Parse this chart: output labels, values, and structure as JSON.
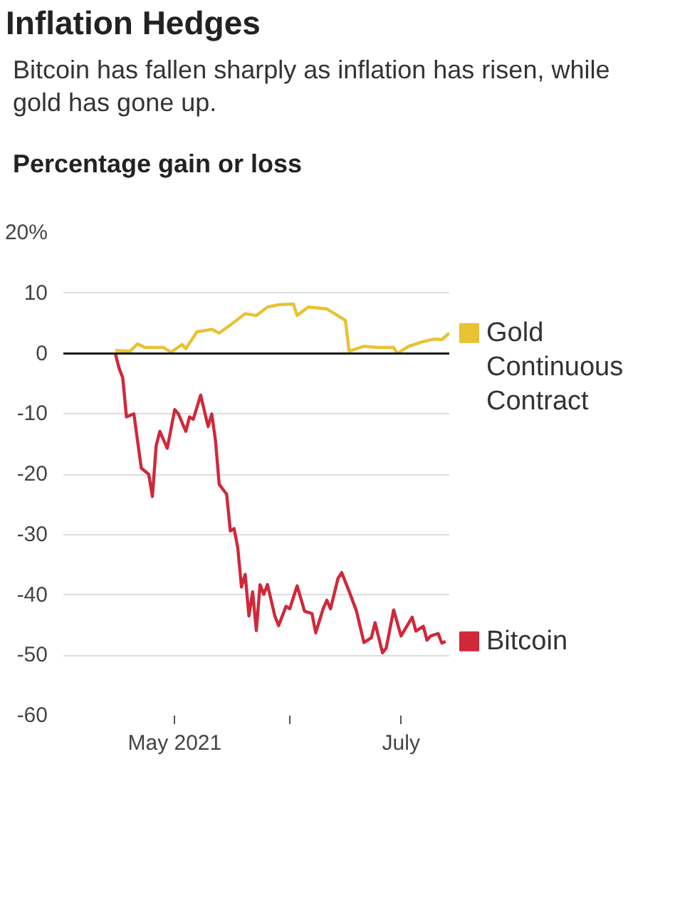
{
  "chart_data": {
    "type": "line",
    "title": "Inflation Hedges",
    "subtitle": "Bitcoin has fallen sharply as inflation has risen, while gold has gone up.",
    "ylabel": "Percentage gain or loss",
    "xlim": [
      "2021-04-01",
      "2021-07-14"
    ],
    "xticks": [
      {
        "value": "2021-05-01",
        "label": "May 2021"
      },
      {
        "value": "2021-06-01",
        "label": null
      },
      {
        "value": "2021-07-01",
        "label": "July"
      }
    ],
    "ylim": [
      -60,
      20
    ],
    "yticks": [
      {
        "value": 20,
        "label": "20%"
      },
      10,
      0,
      -10,
      -20,
      -30,
      -40,
      -50,
      -60
    ],
    "grid": "y",
    "legend": "right",
    "ref_lines": [
      {
        "axis": "y",
        "value": 0,
        "color": "#1a1a1a"
      }
    ],
    "series": [
      {
        "name": "Gold Continuous Contract",
        "color": "#e8c232",
        "x": [
          "2021-04-15",
          "2021-04-19",
          "2021-04-21",
          "2021-04-23",
          "2021-04-28",
          "2021-04-30",
          "2021-05-03",
          "2021-05-04",
          "2021-05-07",
          "2021-05-11",
          "2021-05-13",
          "2021-05-17",
          "2021-05-20",
          "2021-05-23",
          "2021-05-26",
          "2021-05-29",
          "2021-06-02",
          "2021-06-03",
          "2021-06-06",
          "2021-06-11",
          "2021-06-16",
          "2021-06-17",
          "2021-06-21",
          "2021-06-25",
          "2021-06-29",
          "2021-06-30",
          "2021-07-03",
          "2021-07-07",
          "2021-07-10",
          "2021-07-12",
          "2021-07-14"
        ],
        "values": [
          0.5,
          0.4,
          1.6,
          1.0,
          1.0,
          0.2,
          1.5,
          0.8,
          3.6,
          4.0,
          3.4,
          5.2,
          6.6,
          6.3,
          7.7,
          8.1,
          8.2,
          6.3,
          7.7,
          7.4,
          5.5,
          0.4,
          1.2,
          1.0,
          1.0,
          0,
          1.2,
          2.0,
          2.4,
          2.3,
          3.4
        ]
      },
      {
        "name": "Bitcoin",
        "color": "#d0283a",
        "x": [
          "2021-04-15",
          "2021-04-16",
          "2021-04-17",
          "2021-04-18",
          "2021-04-20",
          "2021-04-22",
          "2021-04-24",
          "2021-04-25",
          "2021-04-26",
          "2021-04-27",
          "2021-04-29",
          "2021-05-01",
          "2021-05-02",
          "2021-05-04",
          "2021-05-05",
          "2021-05-06",
          "2021-05-08",
          "2021-05-10",
          "2021-05-11",
          "2021-05-12",
          "2021-05-13",
          "2021-05-15",
          "2021-05-16",
          "2021-05-17",
          "2021-05-18",
          "2021-05-19",
          "2021-05-20",
          "2021-05-21",
          "2021-05-22",
          "2021-05-23",
          "2021-05-24",
          "2021-05-25",
          "2021-05-26",
          "2021-05-28",
          "2021-05-29",
          "2021-05-31",
          "2021-06-01",
          "2021-06-03",
          "2021-06-05",
          "2021-06-07",
          "2021-06-08",
          "2021-06-10",
          "2021-06-11",
          "2021-06-12",
          "2021-06-14",
          "2021-06-15",
          "2021-06-17",
          "2021-06-19",
          "2021-06-21",
          "2021-06-23",
          "2021-06-24",
          "2021-06-26",
          "2021-06-27",
          "2021-06-29",
          "2021-07-01",
          "2021-07-04",
          "2021-07-05",
          "2021-07-07",
          "2021-07-08",
          "2021-07-09",
          "2021-07-11",
          "2021-07-12",
          "2021-07-13"
        ],
        "values": [
          0,
          -2.4,
          -4,
          -10.5,
          -10,
          -19,
          -20,
          -23.7,
          -15.3,
          -12.9,
          -15.7,
          -9.3,
          -10,
          -12.9,
          -10.5,
          -10.9,
          -6.9,
          -12.1,
          -10,
          -14.5,
          -21.7,
          -23.3,
          -29.4,
          -29,
          -32.2,
          -38.7,
          -36.6,
          -43.5,
          -39.5,
          -45.9,
          -38.3,
          -39.9,
          -38.3,
          -43.5,
          -45.1,
          -41.9,
          -42.3,
          -38.5,
          -42.7,
          -43.1,
          -46.3,
          -42.3,
          -40.9,
          -42.3,
          -37.3,
          -36.3,
          -39.4,
          -42.7,
          -47.9,
          -47.1,
          -44.6,
          -49.6,
          -48.8,
          -42.5,
          -46.8,
          -43.7,
          -46,
          -45.2,
          -47.5,
          -46.8,
          -46.4,
          -48,
          -47.7
        ]
      }
    ]
  }
}
